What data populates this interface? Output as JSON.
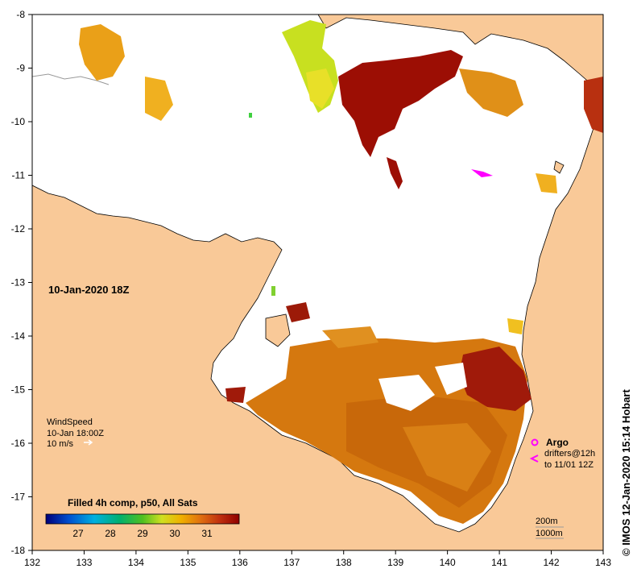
{
  "map": {
    "date_label": "10-Jan-2020 18Z",
    "credit": "© IMOS 12-Jan-2020 15:14 Hobart",
    "x_ticks": [
      "132",
      "133",
      "134",
      "135",
      "136",
      "137",
      "138",
      "139",
      "140",
      "141",
      "142",
      "143"
    ],
    "y_ticks": [
      "-8",
      "-9",
      "-10",
      "-11",
      "-12",
      "-13",
      "-14",
      "-15",
      "-16",
      "-17",
      "-18"
    ]
  },
  "wind_legend": {
    "title": "WindSpeed",
    "time": "10-Jan 18:00Z",
    "speed": "10 m/s"
  },
  "argo_legend": {
    "argo": "Argo",
    "drifters": "drifters@12h",
    "drifters_to": "to 11/01 12Z"
  },
  "depth_legend": {
    "line1": "200m",
    "line2": "1000m"
  },
  "colorbar": {
    "title": "Filled 4h comp, p50, All Sats",
    "ticks": [
      "27",
      "28",
      "29",
      "30",
      "31"
    ]
  },
  "colors": {
    "land": "#f9c998",
    "coast": "#000000",
    "sst_cold": "#00008b",
    "sst_warm": "#8b0000",
    "argo": "#ff00ff"
  }
}
